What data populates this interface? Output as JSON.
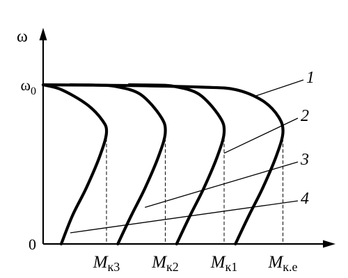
{
  "chart_data": {
    "type": "line",
    "title": "",
    "xlabel": "",
    "ylabel": "ω",
    "y_ticks": [
      {
        "value": 1.0,
        "label": "ω",
        "sub": "0"
      },
      {
        "value": 0.0,
        "label": "0",
        "sub": ""
      }
    ],
    "x_ticks": [
      {
        "value": 0.28,
        "label": "M",
        "sub": "к3"
      },
      {
        "value": 0.54,
        "label": "M",
        "sub": "к2"
      },
      {
        "value": 0.8,
        "label": "M",
        "sub": "к1"
      },
      {
        "value": 1.06,
        "label": "M",
        "sub": "к.е"
      }
    ],
    "xlim": [
      0,
      1.22
    ],
    "ylim": [
      0,
      1.25
    ],
    "grid": false,
    "series": [
      {
        "label": "1",
        "x": [
          0,
          0.4,
          0.7,
          0.85,
          0.97,
          1.04,
          1.06,
          1.03,
          0.97,
          0.91,
          0.85
        ],
        "y": [
          1.0,
          0.995,
          0.985,
          0.97,
          0.9,
          0.8,
          0.7,
          0.55,
          0.35,
          0.18,
          0.0
        ]
      },
      {
        "label": "2",
        "x": [
          0.38,
          0.5,
          0.58,
          0.69,
          0.78,
          0.8,
          0.77,
          0.71,
          0.65,
          0.59
        ],
        "y": [
          1.0,
          0.998,
          0.99,
          0.94,
          0.8,
          0.7,
          0.55,
          0.35,
          0.18,
          0.0
        ]
      },
      {
        "label": "3",
        "x": [
          0.12,
          0.24,
          0.32,
          0.43,
          0.52,
          0.54,
          0.51,
          0.45,
          0.39,
          0.33
        ],
        "y": [
          1.0,
          0.998,
          0.99,
          0.94,
          0.8,
          0.7,
          0.55,
          0.35,
          0.18,
          0.0
        ]
      },
      {
        "label": "4",
        "x": [
          0,
          0.08,
          0.19,
          0.26,
          0.28,
          0.25,
          0.19,
          0.13,
          0.08
        ],
        "y": [
          1.0,
          0.97,
          0.88,
          0.78,
          0.7,
          0.55,
          0.35,
          0.18,
          0.0
        ]
      }
    ],
    "critical_points": [
      {
        "series": "1",
        "x": 1.06,
        "y": 0.7
      },
      {
        "series": "2",
        "x": 0.8,
        "y": 0.7
      },
      {
        "series": "3",
        "x": 0.54,
        "y": 0.7
      },
      {
        "series": "4",
        "x": 0.28,
        "y": 0.7
      }
    ],
    "annotations": [
      {
        "series": "1",
        "text": "1",
        "target": [
          0.94,
          0.93
        ]
      },
      {
        "series": "2",
        "text": "2",
        "target": [
          0.8,
          0.57
        ]
      },
      {
        "series": "3",
        "text": "3",
        "target": [
          0.45,
          0.23
        ]
      },
      {
        "series": "4",
        "text": "4",
        "target": [
          0.12,
          0.07
        ]
      }
    ]
  }
}
